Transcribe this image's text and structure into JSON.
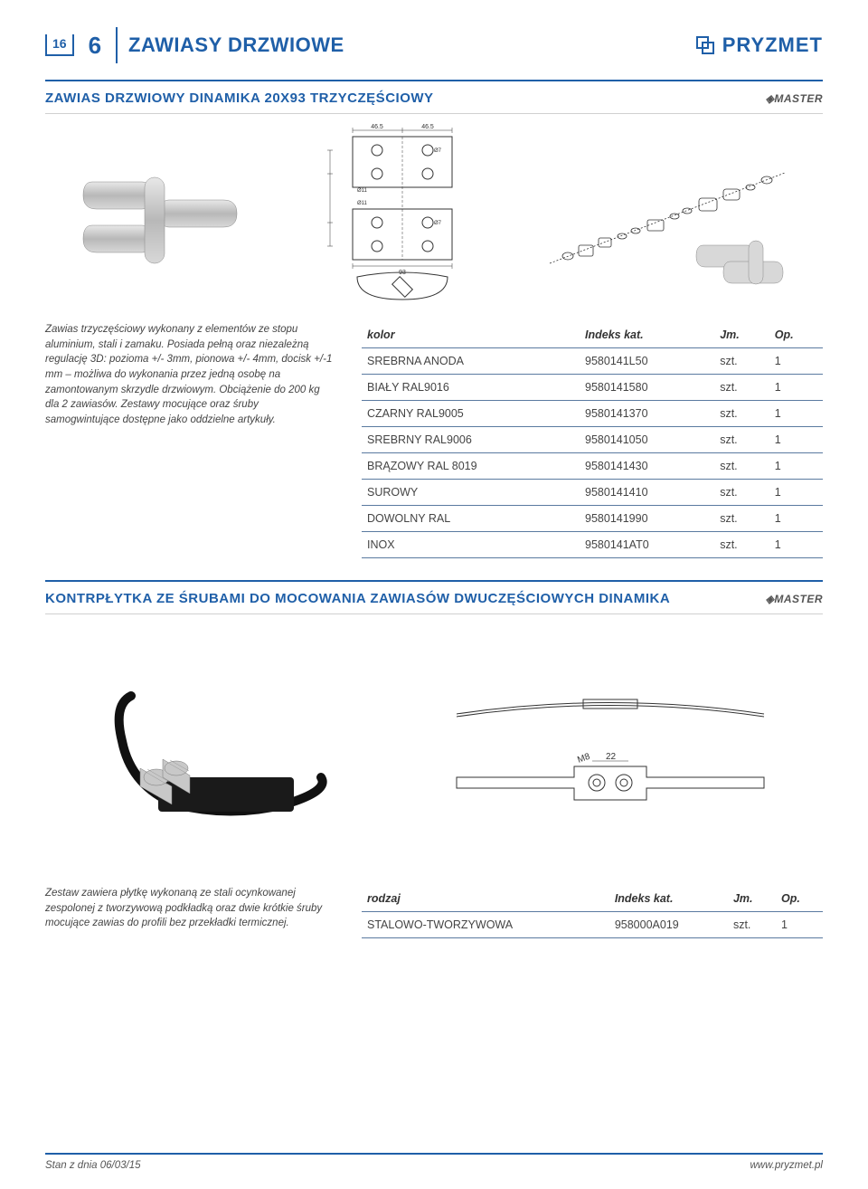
{
  "header": {
    "page_number": "16",
    "chapter_number": "6",
    "title": "ZAWIASY DRZWIOWE",
    "brand": "PRYZMET"
  },
  "section1": {
    "title": "ZAWIAS DRZWIOWY DINAMIKA 20X93 TRZYCZĘŚCIOWY",
    "brand_logo": "MASTER",
    "description": "Zawias trzyczęściowy wykonany z elementów ze stopu aluminium, stali i zamaku. Posiada pełną oraz niezależną regulację 3D: pozioma +/- 3mm, pionowa +/- 4mm, docisk +/-1 mm – możliwa do wykonania przez jedną osobę na zamontowanym skrzydle drzwiowym. Obciążenie do 200 kg dla 2 zawiasów. Zestawy mocujące oraz śruby samogwintujące dostępne jako oddzielne artykuły.",
    "table": {
      "columns": [
        "kolor",
        "Indeks kat.",
        "Jm.",
        "Op."
      ],
      "rows": [
        [
          "SREBRNA ANODA",
          "9580141L50",
          "szt.",
          "1"
        ],
        [
          "BIAŁY RAL9016",
          "9580141580",
          "szt.",
          "1"
        ],
        [
          "CZARNY RAL9005",
          "9580141370",
          "szt.",
          "1"
        ],
        [
          "SREBRNY RAL9006",
          "9580141050",
          "szt.",
          "1"
        ],
        [
          "BRĄZOWY RAL 8019",
          "9580141430",
          "szt.",
          "1"
        ],
        [
          "SUROWY",
          "9580141410",
          "szt.",
          "1"
        ],
        [
          "DOWOLNY RAL",
          "9580141990",
          "szt.",
          "1"
        ],
        [
          "INOX",
          "9580141AT0",
          "szt.",
          "1"
        ]
      ]
    },
    "diagram": {
      "dims": [
        "46.5",
        "46.5",
        "93"
      ],
      "holes": [
        "Ø11",
        "Ø11",
        "Ø7",
        "Ø7"
      ]
    }
  },
  "section2": {
    "title": "KONTRPŁYTKA ZE ŚRUBAMI DO MOCOWANIA ZAWIASÓW DWUCZĘŚCIOWYCH DINAMIKA",
    "brand_logo": "MASTER",
    "description": "Zestaw zawiera płytkę wykonaną ze stali ocynkowanej zespolonej z tworzywową podkładką oraz dwie krótkie śruby mocujące zawias do profili bez przekładki termicznej.",
    "drawing": {
      "thread": "M8",
      "width": "22"
    },
    "table": {
      "columns": [
        "rodzaj",
        "Indeks kat.",
        "Jm.",
        "Op."
      ],
      "rows": [
        [
          "STALOWO-TWORZYWOWA",
          "958000A019",
          "szt.",
          "1"
        ]
      ]
    }
  },
  "footer": {
    "left": "Stan z dnia 06/03/15",
    "right": "www.pryzmet.pl"
  },
  "colors": {
    "brand_blue": "#1f5fa8",
    "rule_blue": "#5a7aa0",
    "text_gray": "#444",
    "line_gray": "#d0d0d0",
    "bg": "#ffffff"
  }
}
